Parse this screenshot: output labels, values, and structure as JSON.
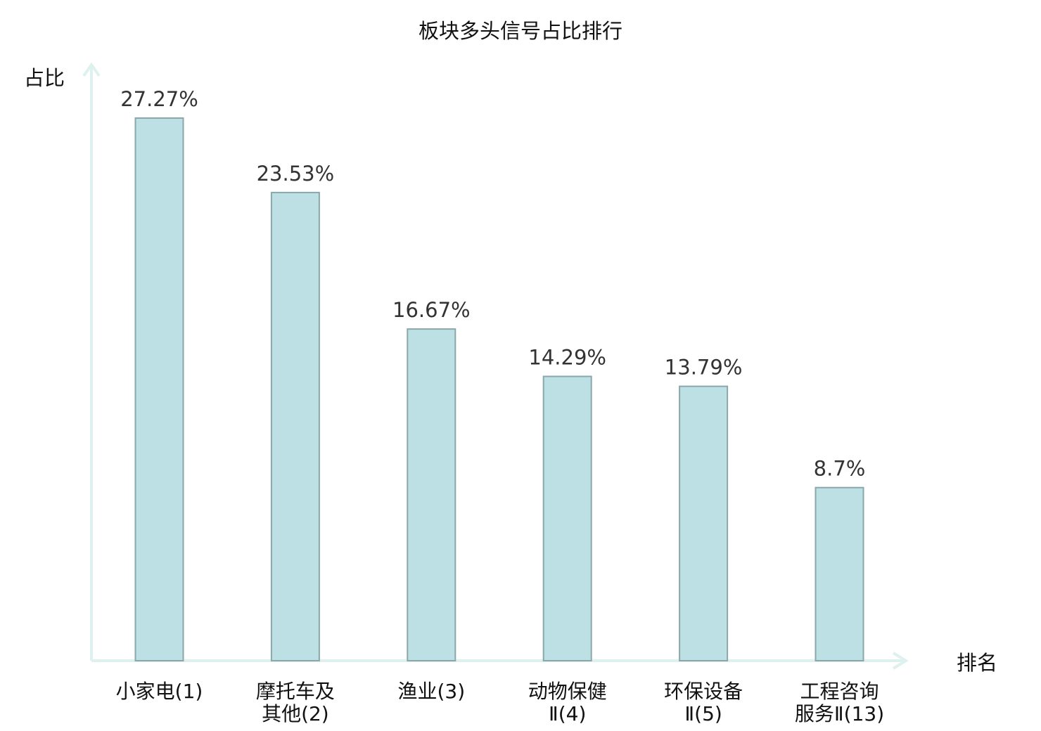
{
  "chart_data": {
    "type": "bar",
    "title": "板块多头信号占比排行",
    "xlabel": "排名",
    "ylabel": "占比",
    "ylim": [
      0,
      30
    ],
    "grid": false,
    "legend": "none",
    "categories": [
      {
        "name_lines": [
          "小家电"
        ],
        "rank_text": "(1)"
      },
      {
        "name_lines": [
          "摩托车及",
          "其他"
        ],
        "rank_text": "(2)"
      },
      {
        "name_lines": [
          "渔业"
        ],
        "rank_text": "(3)"
      },
      {
        "name_lines": [
          "动物保健"
        ],
        "rank_text": "Ⅱ(4)"
      },
      {
        "name_lines": [
          "环保设备"
        ],
        "rank_text": "Ⅱ(5)"
      },
      {
        "name_lines": [
          "工程咨询",
          "服务"
        ],
        "rank_text": "Ⅱ(13)",
        "highlight": true
      }
    ],
    "values": [
      27.27,
      23.53,
      16.67,
      14.29,
      13.79,
      8.7
    ],
    "value_labels": [
      "27.27%",
      "23.53%",
      "16.67%",
      "14.29%",
      "13.79%",
      "8.7%"
    ]
  },
  "colors": {
    "bar_fill": "#bce0e3",
    "bar_stroke": "#8aa8ab",
    "axis": "#dff1ee",
    "label_text": "#333333",
    "tick_text": "#111111",
    "highlight_text": "#e0161b"
  }
}
